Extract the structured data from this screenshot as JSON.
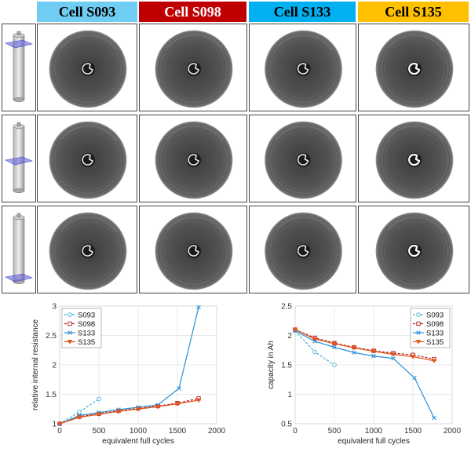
{
  "header": {
    "cells": [
      {
        "label": "Cell S093",
        "color": "#6fcdf3"
      },
      {
        "label": "Cell S098",
        "color": "#c00000"
      },
      {
        "label": "Cell S133",
        "color": "#00b0f0"
      },
      {
        "label": "Cell S135",
        "color": "#ffc000"
      }
    ]
  },
  "colors": {
    "S093": "#3fb1d6",
    "S098": "#b01818",
    "S133": "#2a8fd6",
    "S135": "#e0561b",
    "plane": "#5b58d8"
  },
  "chart_data": [
    {
      "type": "line",
      "xlabel": "equivalent full cycles",
      "ylabel": "relative internal resistance",
      "xlim": [
        0,
        2000
      ],
      "ylim": [
        1,
        3
      ],
      "xticks": [
        0,
        500,
        1000,
        1500,
        2000
      ],
      "yticks": [
        1,
        1.5,
        2,
        2.5,
        3
      ],
      "grid": true,
      "legend_position": "top-left",
      "series": [
        {
          "name": "S093",
          "marker": "circle",
          "dash": "dashed",
          "x": [
            0,
            250,
            500
          ],
          "y": [
            1.0,
            1.2,
            1.42
          ]
        },
        {
          "name": "S098",
          "marker": "square",
          "dash": "dashed",
          "x": [
            0,
            250,
            500,
            750,
            1000,
            1250,
            1500,
            1770
          ],
          "y": [
            1.0,
            1.12,
            1.17,
            1.22,
            1.26,
            1.3,
            1.35,
            1.43
          ]
        },
        {
          "name": "S133",
          "marker": "x",
          "dash": "solid",
          "x": [
            0,
            250,
            500,
            750,
            1000,
            1250,
            1520,
            1770
          ],
          "y": [
            1.0,
            1.14,
            1.19,
            1.24,
            1.28,
            1.32,
            1.6,
            2.98
          ]
        },
        {
          "name": "S135",
          "marker": "triangle",
          "dash": "solid",
          "x": [
            0,
            250,
            500,
            750,
            1000,
            1250,
            1500,
            1770
          ],
          "y": [
            1.0,
            1.11,
            1.16,
            1.21,
            1.25,
            1.29,
            1.34,
            1.4
          ]
        }
      ]
    },
    {
      "type": "line",
      "xlabel": "equivalent full cycles",
      "ylabel": "capacity in Ah",
      "xlim": [
        0,
        2000
      ],
      "ylim": [
        0.5,
        2.5
      ],
      "xticks": [
        0,
        500,
        1000,
        1500,
        2000
      ],
      "yticks": [
        0.5,
        1,
        1.5,
        2,
        2.5
      ],
      "grid": true,
      "legend_position": "top-right",
      "series": [
        {
          "name": "S093",
          "marker": "circle",
          "dash": "dashed",
          "x": [
            0,
            250,
            500
          ],
          "y": [
            2.08,
            1.72,
            1.5
          ]
        },
        {
          "name": "S098",
          "marker": "square",
          "dash": "dashed",
          "x": [
            0,
            250,
            500,
            750,
            1000,
            1250,
            1500,
            1770
          ],
          "y": [
            2.1,
            1.96,
            1.87,
            1.8,
            1.74,
            1.7,
            1.67,
            1.6
          ]
        },
        {
          "name": "S133",
          "marker": "x",
          "dash": "solid",
          "x": [
            0,
            250,
            500,
            750,
            1000,
            1250,
            1520,
            1770
          ],
          "y": [
            2.08,
            1.9,
            1.8,
            1.71,
            1.65,
            1.61,
            1.28,
            0.6
          ]
        },
        {
          "name": "S135",
          "marker": "triangle",
          "dash": "solid",
          "x": [
            0,
            250,
            500,
            750,
            1000,
            1250,
            1500,
            1770
          ],
          "y": [
            2.1,
            1.94,
            1.86,
            1.79,
            1.73,
            1.68,
            1.64,
            1.57
          ]
        }
      ]
    }
  ]
}
